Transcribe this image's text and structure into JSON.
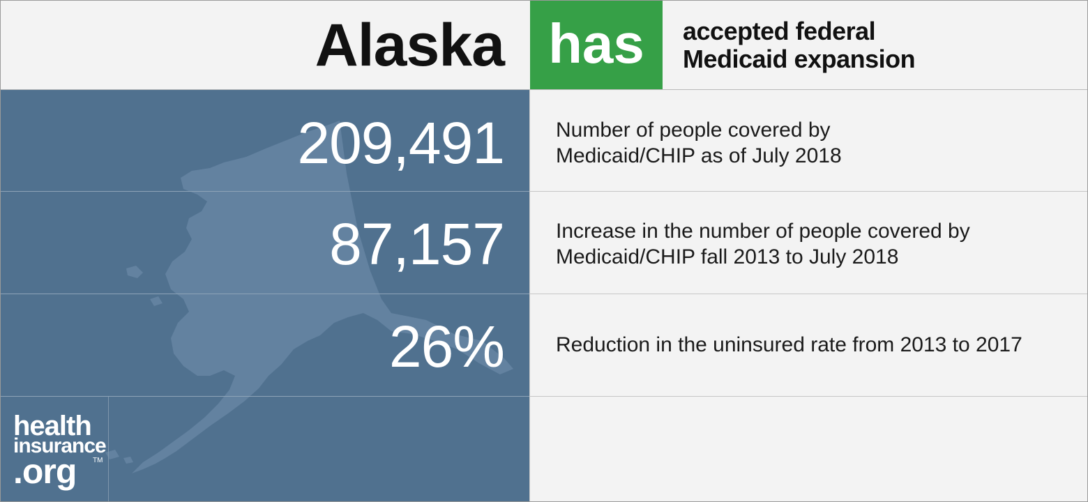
{
  "header": {
    "state": "Alaska",
    "status": "has",
    "status_color": "#36a047",
    "description_line1": "accepted federal",
    "description_line2": "Medicaid expansion"
  },
  "stats": [
    {
      "value": "209,491",
      "description_line1": "Number of people covered by",
      "description_line2": "Medicaid/CHIP as of July 2018"
    },
    {
      "value": "87,157",
      "description_line1": "Increase in the number of people covered by",
      "description_line2": "Medicaid/CHIP fall 2013 to July 2018"
    },
    {
      "value": "26%",
      "description_line1": "Reduction in the uninsured rate from 2013 to 2017"
    }
  ],
  "logo": {
    "line1": "health",
    "line2": "insurance",
    "line3": ".org",
    "tm": "TM"
  },
  "colors": {
    "panel": "#50718f",
    "map_fill": "#6382a0",
    "background": "#f3f3f3"
  },
  "map_icon": "alaska-state-silhouette"
}
